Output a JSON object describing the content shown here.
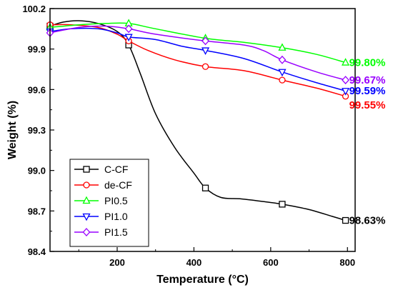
{
  "chart_data": {
    "type": "line",
    "title": "",
    "xlabel": "Temperature (°C)",
    "ylabel": "Weight (%)",
    "xlim": [
      25,
      820
    ],
    "ylim": [
      98.4,
      100.2
    ],
    "x_ticks": [
      200,
      400,
      600,
      800
    ],
    "y_ticks": [
      98.4,
      98.7,
      99.0,
      99.3,
      99.6,
      99.9,
      100.2
    ],
    "x_tick_labels": [
      "200",
      "400",
      "600",
      "800"
    ],
    "y_tick_labels": [
      "98.4",
      "98.7",
      "99.0",
      "99.3",
      "99.6",
      "99.9",
      "100.2"
    ],
    "legend_position": "bottom-left",
    "series": [
      {
        "name": "C-CF",
        "color": "#000000",
        "marker": "square",
        "curve": [
          [
            25,
            100.07
          ],
          [
            60,
            100.1
          ],
          [
            100,
            100.11
          ],
          [
            150,
            100.09
          ],
          [
            200,
            100.03
          ],
          [
            230,
            99.93
          ],
          [
            260,
            99.72
          ],
          [
            300,
            99.42
          ],
          [
            350,
            99.17
          ],
          [
            400,
            98.98
          ],
          [
            430,
            98.87
          ],
          [
            470,
            98.8
          ],
          [
            520,
            98.79
          ],
          [
            580,
            98.77
          ],
          [
            630,
            98.75
          ],
          [
            700,
            98.71
          ],
          [
            760,
            98.66
          ],
          [
            795,
            98.63
          ]
        ],
        "markers": [
          [
            25,
            100.07
          ],
          [
            230,
            99.93
          ],
          [
            430,
            98.87
          ],
          [
            630,
            98.75
          ],
          [
            795,
            98.63
          ]
        ],
        "end_label": "98.63%"
      },
      {
        "name": "de-CF",
        "color": "#ff0000",
        "marker": "circle",
        "curve": [
          [
            25,
            100.08
          ],
          [
            80,
            100.08
          ],
          [
            150,
            100.06
          ],
          [
            200,
            100.01
          ],
          [
            230,
            99.96
          ],
          [
            280,
            99.89
          ],
          [
            350,
            99.82
          ],
          [
            430,
            99.77
          ],
          [
            530,
            99.74
          ],
          [
            630,
            99.67
          ],
          [
            720,
            99.61
          ],
          [
            795,
            99.55
          ]
        ],
        "markers": [
          [
            25,
            100.08
          ],
          [
            230,
            99.96
          ],
          [
            430,
            99.77
          ],
          [
            630,
            99.67
          ],
          [
            795,
            99.55
          ]
        ],
        "end_label": "99.55%"
      },
      {
        "name": "PI0.5",
        "color": "#00ff00",
        "marker": "triangle-up",
        "curve": [
          [
            25,
            100.06
          ],
          [
            100,
            100.08
          ],
          [
            170,
            100.09
          ],
          [
            230,
            100.09
          ],
          [
            300,
            100.05
          ],
          [
            430,
            99.98
          ],
          [
            530,
            99.95
          ],
          [
            630,
            99.91
          ],
          [
            720,
            99.86
          ],
          [
            795,
            99.8
          ]
        ],
        "markers": [
          [
            25,
            100.06
          ],
          [
            230,
            100.09
          ],
          [
            430,
            99.98
          ],
          [
            630,
            99.91
          ],
          [
            795,
            99.8
          ]
        ],
        "end_label": "99.80%"
      },
      {
        "name": "PI1.0",
        "color": "#0000ff",
        "marker": "triangle-down",
        "curve": [
          [
            25,
            100.03
          ],
          [
            80,
            100.05
          ],
          [
            150,
            100.05
          ],
          [
            200,
            100.02
          ],
          [
            230,
            99.99
          ],
          [
            300,
            99.97
          ],
          [
            370,
            99.92
          ],
          [
            430,
            99.89
          ],
          [
            530,
            99.83
          ],
          [
            630,
            99.73
          ],
          [
            720,
            99.65
          ],
          [
            795,
            99.59
          ]
        ],
        "markers": [
          [
            25,
            100.03
          ],
          [
            230,
            99.99
          ],
          [
            430,
            99.89
          ],
          [
            630,
            99.73
          ],
          [
            795,
            99.59
          ]
        ],
        "end_label": "99.59%"
      },
      {
        "name": "PI1.5",
        "color": "#9900ff",
        "marker": "diamond",
        "curve": [
          [
            25,
            100.02
          ],
          [
            100,
            100.06
          ],
          [
            170,
            100.07
          ],
          [
            230,
            100.05
          ],
          [
            300,
            100.01
          ],
          [
            430,
            99.96
          ],
          [
            530,
            99.93
          ],
          [
            580,
            99.89
          ],
          [
            630,
            99.82
          ],
          [
            720,
            99.73
          ],
          [
            795,
            99.67
          ]
        ],
        "markers": [
          [
            25,
            100.02
          ],
          [
            230,
            100.05
          ],
          [
            430,
            99.96
          ],
          [
            630,
            99.82
          ],
          [
            795,
            99.67
          ]
        ],
        "end_label": "99.67%"
      }
    ]
  }
}
